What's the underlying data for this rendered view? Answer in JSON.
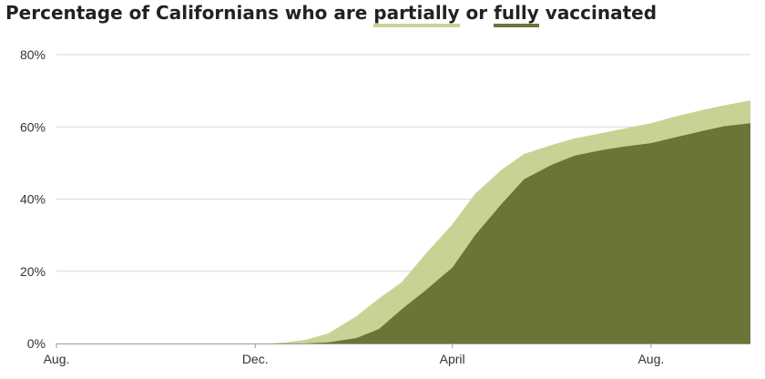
{
  "title": {
    "before": "Percentage of Californians who are ",
    "partial_word": "partially",
    "middle": " or ",
    "full_word": "fully",
    "after": " vaccinated"
  },
  "colors": {
    "partial": "#c7d395",
    "full": "#6a7537",
    "grid": "#d9d9d9",
    "axis": "#999999"
  },
  "chart_data": {
    "type": "area",
    "title": "Percentage of Californians who are partially or fully vaccinated",
    "xlabel": "",
    "ylabel": "",
    "ylim": [
      0,
      80
    ],
    "xlim": [
      "2020-08-01",
      "2021-10-01"
    ],
    "grid": true,
    "y_ticks": [
      {
        "value": 0,
        "label": "0%"
      },
      {
        "value": 20,
        "label": "20%"
      },
      {
        "value": 40,
        "label": "40%"
      },
      {
        "value": 60,
        "label": "60%"
      },
      {
        "value": 80,
        "label": "80%"
      }
    ],
    "x_ticks": [
      {
        "date": "2020-08-01",
        "label": "Aug."
      },
      {
        "date": "2020-12-01",
        "label": "Dec."
      },
      {
        "date": "2021-04-01",
        "label": "April"
      },
      {
        "date": "2021-08-01",
        "label": "Aug."
      }
    ],
    "series": [
      {
        "name": "partially",
        "points": [
          [
            "2020-12-10",
            0
          ],
          [
            "2020-12-20",
            0.3
          ],
          [
            "2021-01-01",
            1.0
          ],
          [
            "2021-01-15",
            2.8
          ],
          [
            "2021-02-01",
            7.5
          ],
          [
            "2021-02-15",
            12.5
          ],
          [
            "2021-03-01",
            17.0
          ],
          [
            "2021-03-15",
            24.5
          ],
          [
            "2021-04-01",
            33.0
          ],
          [
            "2021-04-15",
            41.5
          ],
          [
            "2021-05-01",
            48.0
          ],
          [
            "2021-05-15",
            52.5
          ],
          [
            "2021-06-01",
            55.0
          ],
          [
            "2021-06-15",
            56.8
          ],
          [
            "2021-07-01",
            58.2
          ],
          [
            "2021-07-15",
            59.5
          ],
          [
            "2021-08-01",
            61.0
          ],
          [
            "2021-08-15",
            62.8
          ],
          [
            "2021-09-01",
            64.6
          ],
          [
            "2021-09-15",
            66.0
          ],
          [
            "2021-10-01",
            67.3
          ]
        ]
      },
      {
        "name": "fully",
        "points": [
          [
            "2021-01-01",
            0
          ],
          [
            "2021-01-15",
            0.3
          ],
          [
            "2021-02-01",
            1.5
          ],
          [
            "2021-02-15",
            4.0
          ],
          [
            "2021-03-01",
            9.5
          ],
          [
            "2021-03-15",
            14.5
          ],
          [
            "2021-04-01",
            21.0
          ],
          [
            "2021-04-15",
            30.0
          ],
          [
            "2021-05-01",
            38.5
          ],
          [
            "2021-05-15",
            45.5
          ],
          [
            "2021-06-01",
            49.5
          ],
          [
            "2021-06-15",
            52.0
          ],
          [
            "2021-07-01",
            53.5
          ],
          [
            "2021-07-15",
            54.5
          ],
          [
            "2021-08-01",
            55.5
          ],
          [
            "2021-08-15",
            57.0
          ],
          [
            "2021-09-01",
            58.8
          ],
          [
            "2021-09-15",
            60.2
          ],
          [
            "2021-10-01",
            61.0
          ]
        ]
      }
    ]
  }
}
